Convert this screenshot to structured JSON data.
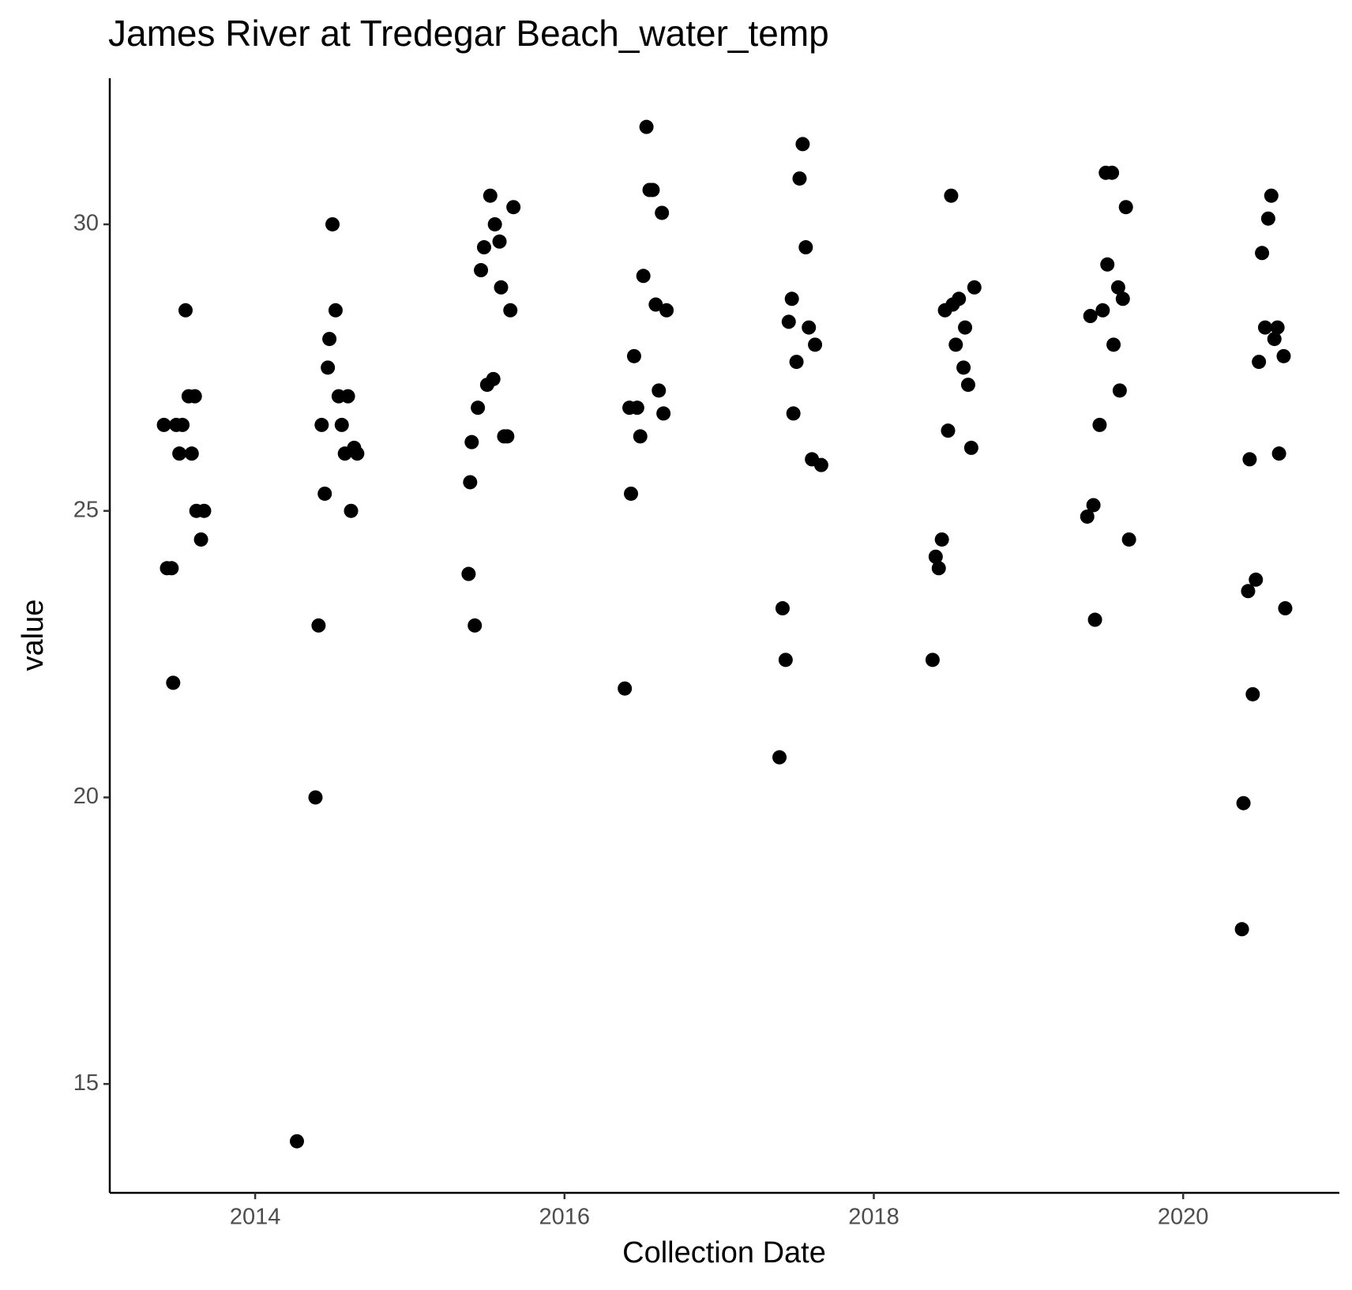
{
  "chart_data": {
    "type": "scatter",
    "title": "James River at Tredegar Beach_water_temp",
    "x_label": "Collection Date",
    "y_label": "value",
    "color": "#000000",
    "xlim": [
      2013.06,
      2021.01
    ],
    "ylim": [
      13.1,
      32.55
    ],
    "xticks": [
      2014,
      2016,
      2018,
      2020
    ],
    "yticks": [
      15,
      20,
      25,
      30
    ],
    "x": [
      2013.41,
      2013.43,
      2013.46,
      2013.47,
      2013.49,
      2013.51,
      2013.53,
      2013.55,
      2013.57,
      2013.59,
      2013.61,
      2013.62,
      2013.65,
      2013.67,
      2014.27,
      2014.39,
      2014.41,
      2014.43,
      2014.45,
      2014.47,
      2014.48,
      2014.5,
      2014.52,
      2014.54,
      2014.56,
      2014.58,
      2014.6,
      2014.62,
      2014.64,
      2014.66,
      2015.38,
      2015.39,
      2015.4,
      2015.42,
      2015.44,
      2015.46,
      2015.48,
      2015.5,
      2015.52,
      2015.54,
      2015.55,
      2015.58,
      2015.59,
      2015.61,
      2015.63,
      2015.65,
      2015.67,
      2016.39,
      2016.43,
      2016.42,
      2016.45,
      2016.47,
      2016.49,
      2016.51,
      2016.53,
      2016.55,
      2016.57,
      2016.59,
      2016.61,
      2016.63,
      2016.64,
      2016.66,
      2017.39,
      2017.41,
      2017.43,
      2017.45,
      2017.47,
      2017.48,
      2017.5,
      2017.52,
      2017.54,
      2017.56,
      2017.58,
      2017.6,
      2017.62,
      2017.66,
      2018.38,
      2018.4,
      2018.42,
      2018.44,
      2018.46,
      2018.48,
      2018.5,
      2018.51,
      2018.53,
      2018.55,
      2018.58,
      2018.59,
      2018.61,
      2018.63,
      2018.65,
      2019.38,
      2019.4,
      2019.42,
      2019.43,
      2019.46,
      2019.48,
      2019.5,
      2019.51,
      2019.54,
      2019.55,
      2019.58,
      2019.59,
      2019.61,
      2019.63,
      2019.65,
      2020.38,
      2020.39,
      2020.42,
      2020.43,
      2020.45,
      2020.47,
      2020.49,
      2020.51,
      2020.53,
      2020.55,
      2020.57,
      2020.59,
      2020.61,
      2020.62,
      2020.65,
      2020.66
    ],
    "values": [
      26.5,
      24.0,
      24.0,
      22.0,
      26.5,
      26.0,
      26.5,
      28.5,
      27.0,
      26.0,
      27.0,
      25.0,
      24.5,
      25.0,
      14.0,
      20.0,
      23.0,
      26.5,
      25.3,
      27.5,
      28.0,
      30.0,
      28.5,
      27.0,
      26.5,
      26.0,
      27.0,
      25.0,
      26.1,
      26.0,
      23.9,
      25.5,
      26.2,
      23.0,
      26.8,
      29.2,
      29.6,
      27.2,
      30.5,
      27.3,
      30.0,
      29.7,
      28.9,
      26.3,
      26.3,
      28.5,
      30.3,
      21.9,
      25.3,
      26.8,
      27.7,
      26.8,
      26.3,
      29.1,
      31.7,
      30.6,
      30.6,
      28.6,
      27.1,
      30.2,
      26.7,
      28.5,
      20.7,
      23.3,
      22.4,
      28.3,
      28.7,
      26.7,
      27.6,
      30.8,
      31.4,
      29.6,
      28.2,
      25.9,
      27.9,
      25.8,
      22.4,
      24.2,
      24.0,
      24.5,
      28.5,
      26.4,
      30.5,
      28.6,
      27.9,
      28.7,
      27.5,
      28.2,
      27.2,
      26.1,
      28.9,
      24.9,
      28.4,
      25.1,
      23.1,
      26.5,
      28.5,
      30.9,
      29.3,
      30.9,
      27.9,
      28.9,
      27.1,
      28.7,
      30.3,
      24.5,
      17.7,
      19.9,
      23.6,
      25.9,
      21.8,
      23.8,
      27.6,
      29.5,
      28.2,
      30.1,
      30.5,
      28.0,
      28.2,
      26.0,
      27.7,
      23.3
    ]
  }
}
